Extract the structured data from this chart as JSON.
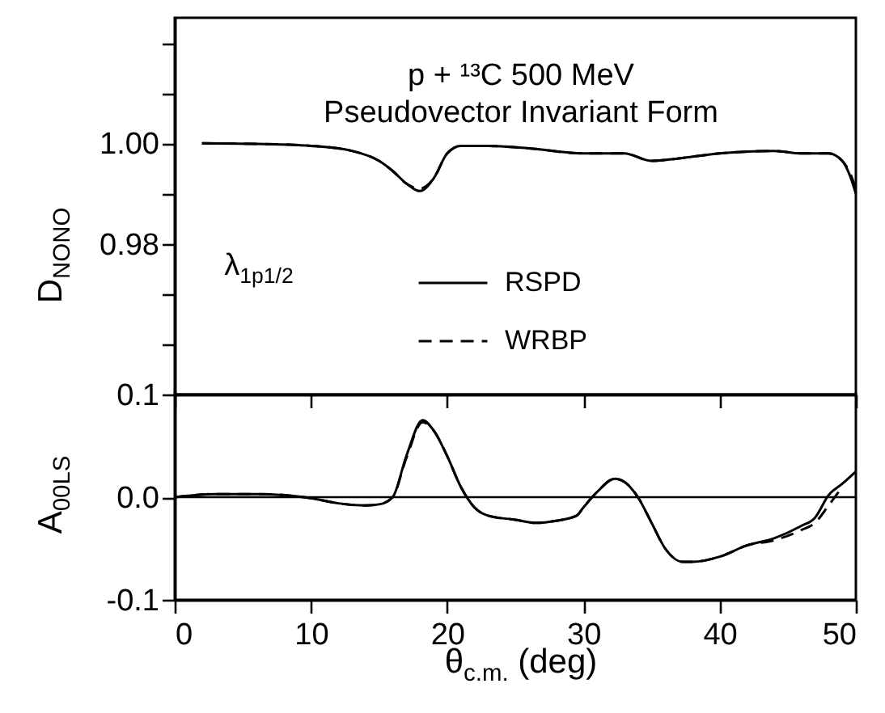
{
  "chart_data": [
    {
      "type": "line",
      "ylabel": "D$_{NONO}$",
      "annotations": [
        "p + ¹³C  500 MeV",
        "Pseudovector Invariant Form",
        "λ$_{1p}$$_{1/2}$"
      ],
      "x": [
        2,
        6,
        10,
        13,
        15,
        16,
        17,
        18,
        19,
        20,
        21,
        23,
        26,
        30,
        33,
        35,
        37,
        40,
        44,
        46,
        47,
        48,
        49,
        49.5,
        50
      ],
      "series": [
        {
          "name": "RSPD",
          "color": "#000000",
          "line_style": "solid",
          "values": [
            1.0,
            0.9999,
            0.9995,
            0.9985,
            0.9965,
            0.9945,
            0.992,
            0.9905,
            0.993,
            0.998,
            0.9995,
            0.9995,
            0.999,
            0.998,
            0.998,
            0.9965,
            0.997,
            0.998,
            0.9985,
            0.998,
            0.998,
            0.998,
            0.9965,
            0.994,
            0.99
          ]
        },
        {
          "name": "WRBP",
          "color": "#000000",
          "line_style": "dashed",
          "values": [
            1.0,
            0.9999,
            0.9995,
            0.9985,
            0.9965,
            0.9945,
            0.992,
            0.991,
            0.993,
            0.998,
            0.9995,
            0.9995,
            0.999,
            0.998,
            0.998,
            0.9965,
            0.997,
            0.998,
            0.9985,
            0.998,
            0.998,
            0.998,
            0.9965,
            0.9945,
            0.991
          ]
        }
      ],
      "xlim": [
        0,
        50
      ],
      "xticks": [
        0,
        10,
        20,
        30,
        40,
        50
      ],
      "tick_labels": "y",
      "ylim": [
        0.95,
        1.025
      ],
      "yticks": [
        {
          "value": 0.96,
          "label": null
        },
        {
          "value": 0.97,
          "label": null
        },
        0.98,
        {
          "value": 0.99,
          "label": null
        },
        {
          "value": 1,
          "label": "1.00"
        },
        {
          "value": 1.01,
          "label": null
        },
        {
          "value": 1.02,
          "label": null
        }
      ],
      "grid": false,
      "legend": "right"
    },
    {
      "type": "line",
      "xlabel": "θ$_{c.m.}$ (deg)",
      "ylabel": "A$_{00LS}$",
      "x": [
        0,
        3,
        6,
        10,
        12,
        14,
        15,
        16,
        17,
        18.2,
        19,
        20,
        21,
        22,
        23,
        25,
        26.5,
        28,
        29.5,
        30,
        31,
        32.3,
        33,
        34,
        35,
        36,
        37.3,
        38,
        40,
        42,
        44,
        46,
        47,
        48,
        49,
        50
      ],
      "series": [
        {
          "color": "#000000",
          "line_style": "solid",
          "values": [
            0,
            0.003,
            0.003,
            -0.001,
            -0.006,
            -0.008,
            -0.007,
            0,
            0.04,
            0.075,
            0.065,
            0.04,
            0.01,
            -0.01,
            -0.018,
            -0.022,
            -0.025,
            -0.023,
            -0.018,
            -0.01,
            0.005,
            0.018,
            0.015,
            0,
            -0.025,
            -0.05,
            -0.063,
            -0.063,
            -0.058,
            -0.047,
            -0.04,
            -0.028,
            -0.02,
            0.002,
            0.013,
            0.025
          ]
        },
        {
          "color": "#000000",
          "line_style": "dashed",
          "values": [
            0,
            0.003,
            0.003,
            -0.001,
            -0.006,
            -0.008,
            -0.007,
            0,
            0.038,
            0.073,
            0.065,
            0.04,
            0.01,
            -0.01,
            -0.018,
            -0.022,
            -0.025,
            -0.023,
            -0.018,
            -0.01,
            0.005,
            0.018,
            0.015,
            0,
            -0.025,
            -0.05,
            -0.063,
            -0.063,
            -0.058,
            -0.047,
            -0.042,
            -0.032,
            -0.025,
            -0.008,
            0.01,
            null
          ]
        }
      ],
      "xlim": [
        0,
        50
      ],
      "xticks": [
        0,
        10,
        20,
        30,
        40,
        50
      ],
      "ylim": [
        -0.1,
        0.1
      ],
      "yticks": [
        {
          "value": -0.1,
          "label": "-0.1"
        },
        {
          "value": 0,
          "label": "0.0"
        },
        0.1
      ],
      "ref_lines": [
        {
          "axis": "y",
          "value": 0,
          "color": "#000000"
        }
      ],
      "grid": false,
      "legend": false
    }
  ]
}
